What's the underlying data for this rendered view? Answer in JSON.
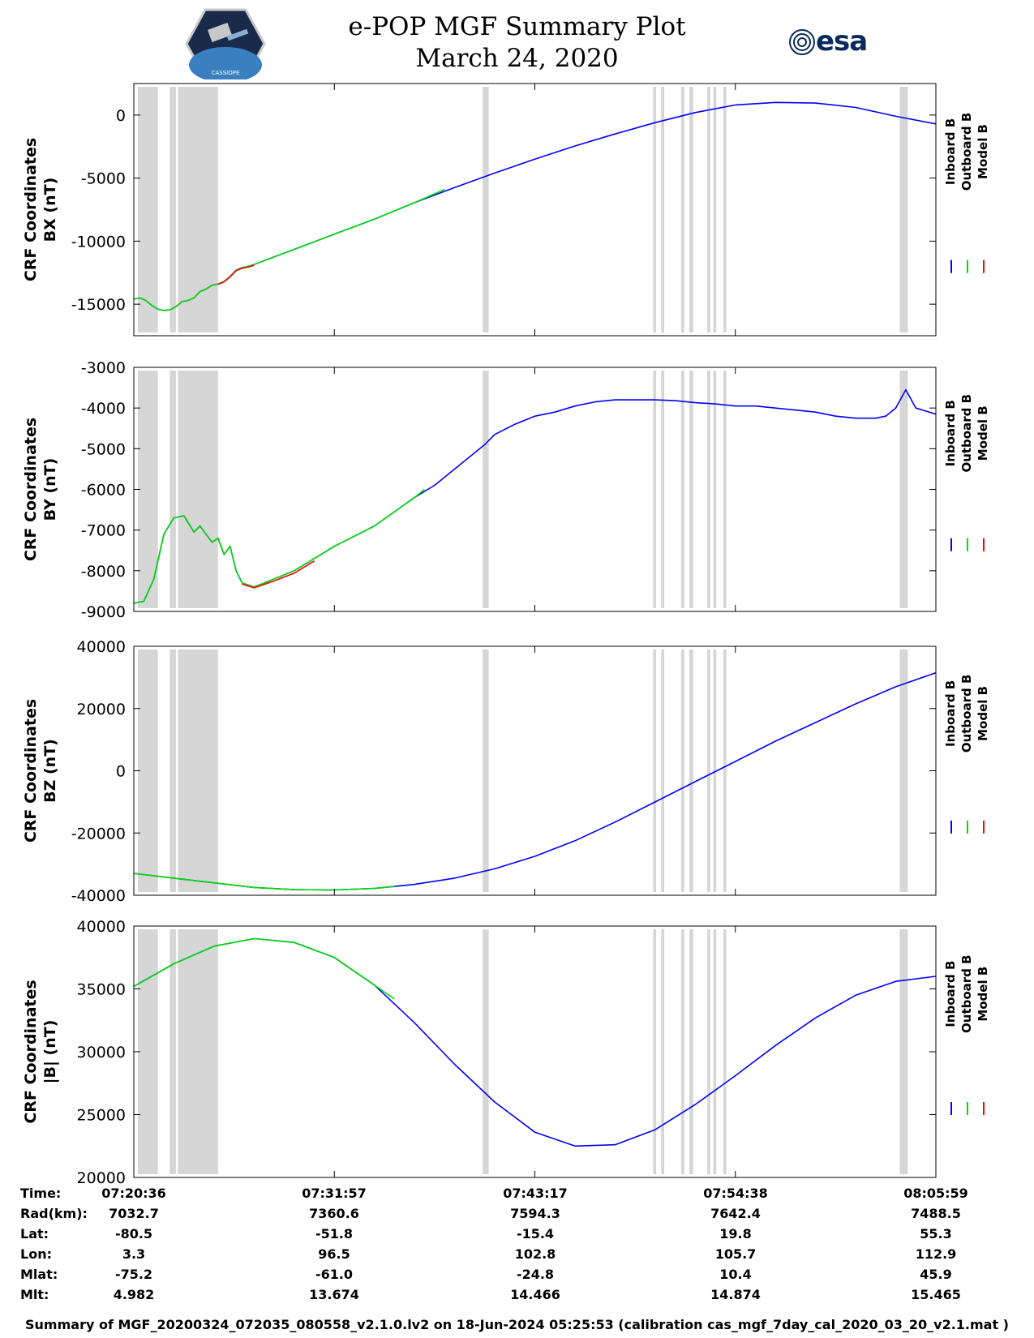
{
  "header": {
    "title_line1": "e-POP MGF Summary Plot",
    "title_line2": "March 24, 2020",
    "logo_left": "CASSIOPE",
    "logo_right": "esa"
  },
  "legend": {
    "items": [
      "Inboard B",
      "Outboard B",
      "Model B"
    ],
    "colors": [
      "#0000ff",
      "#00dd00",
      "#ff0000"
    ]
  },
  "chart_data": [
    {
      "type": "line",
      "ylabel_line1": "CRF Coordinates",
      "ylabel_line2": "BX (nT)",
      "ylim": [
        -17500,
        2500
      ],
      "yticks": [
        0,
        -5000,
        -10000,
        -15000
      ],
      "ytick_labels": [
        "0",
        "-5000",
        "-10000",
        "-15000"
      ],
      "series": [
        {
          "name": "Inboard B",
          "color": "#0000ff",
          "x": [
            0,
            0.3,
            0.6,
            0.9,
            1.2,
            1.5,
            1.8,
            2.1,
            2.4,
            2.7,
            3.0,
            3.3,
            3.6,
            3.9,
            4.2,
            4.5,
            4.8,
            5.1,
            5.4,
            5.7,
            6.0,
            7,
            8,
            9,
            10,
            12,
            14,
            16,
            18,
            20,
            22,
            24,
            26,
            28,
            30,
            32,
            34,
            36,
            38,
            40
          ],
          "y": [
            -14600,
            -14500,
            -14700,
            -15100,
            -15400,
            -15500,
            -15450,
            -15200,
            -14800,
            -14700,
            -14500,
            -14000,
            -13800,
            -13500,
            -13400,
            -13200,
            -12800,
            -12300,
            -12100,
            -12000,
            -11850,
            -11250,
            -10650,
            -10050,
            -9450,
            -8250,
            -6950,
            -5750,
            -4600,
            -3500,
            -2450,
            -1500,
            -600,
            200,
            800,
            1000,
            950,
            600,
            -100,
            -700
          ]
        },
        {
          "name": "Outboard B",
          "color": "#00dd00",
          "x": [
            0,
            0.3,
            0.6,
            0.9,
            1.2,
            1.5,
            1.8,
            2.1,
            2.4,
            2.7,
            3.0,
            3.3,
            3.6,
            3.9,
            4.2,
            4.5,
            4.8,
            5.1,
            5.4,
            5.7,
            6.0,
            7,
            8,
            9,
            10,
            12,
            14,
            15.5
          ],
          "y": [
            -14600,
            -14500,
            -14700,
            -15100,
            -15400,
            -15500,
            -15450,
            -15200,
            -14800,
            -14700,
            -14500,
            -14000,
            -13800,
            -13500,
            -13400,
            -13200,
            -12800,
            -12300,
            -12100,
            -12000,
            -11850,
            -11250,
            -10650,
            -10050,
            -9450,
            -8250,
            -6950,
            -5900
          ]
        },
        {
          "name": "Model B",
          "color": "#ff0000",
          "x": [
            4.2,
            4.5,
            4.8,
            5.1,
            5.4,
            5.7,
            6.0
          ],
          "y": [
            -13420,
            -13230,
            -12840,
            -12350,
            -12150,
            -12060,
            -11920
          ]
        }
      ]
    },
    {
      "type": "line",
      "ylabel_line1": "CRF Coordinates",
      "ylabel_line2": "BY (nT)",
      "ylim": [
        -9000,
        -3000
      ],
      "yticks": [
        -3000,
        -4000,
        -5000,
        -6000,
        -7000,
        -8000,
        -9000
      ],
      "ytick_labels": [
        "-3000",
        "-4000",
        "-5000",
        "-6000",
        "-7000",
        "-8000",
        "-9000"
      ],
      "series": [
        {
          "name": "Inboard B",
          "color": "#0000ff",
          "x": [
            0,
            0.5,
            1.0,
            1.5,
            2.0,
            2.5,
            3.0,
            3.3,
            3.6,
            3.9,
            4.2,
            4.5,
            4.8,
            5.1,
            5.4,
            6,
            7,
            8,
            9,
            10,
            11,
            12,
            13,
            14,
            15,
            16,
            17,
            17.5,
            18,
            19,
            20,
            21,
            22,
            23,
            24,
            25,
            26,
            27,
            28,
            29,
            30,
            31,
            32,
            33,
            34,
            35,
            36,
            37,
            37.5,
            38,
            38.5,
            39,
            40
          ],
          "y": [
            -8800,
            -8750,
            -8200,
            -7100,
            -6700,
            -6650,
            -7050,
            -6900,
            -7100,
            -7300,
            -7200,
            -7600,
            -7400,
            -8000,
            -8300,
            -8400,
            -8200,
            -8000,
            -7700,
            -7400,
            -7150,
            -6900,
            -6550,
            -6200,
            -5900,
            -5500,
            -5100,
            -4900,
            -4650,
            -4400,
            -4200,
            -4100,
            -3950,
            -3850,
            -3800,
            -3800,
            -3800,
            -3820,
            -3870,
            -3900,
            -3950,
            -3950,
            -4000,
            -4050,
            -4100,
            -4200,
            -4250,
            -4250,
            -4200,
            -4000,
            -3550,
            -4000,
            -4150
          ]
        },
        {
          "name": "Outboard B",
          "color": "#00dd00",
          "x": [
            0,
            0.5,
            1.0,
            1.5,
            2.0,
            2.5,
            3.0,
            3.3,
            3.6,
            3.9,
            4.2,
            4.5,
            4.8,
            5.1,
            5.4,
            6,
            7,
            8,
            9,
            10,
            11,
            12,
            13,
            14,
            14.5
          ],
          "y": [
            -8800,
            -8750,
            -8200,
            -7100,
            -6700,
            -6650,
            -7050,
            -6900,
            -7100,
            -7300,
            -7200,
            -7600,
            -7400,
            -8000,
            -8300,
            -8400,
            -8200,
            -8000,
            -7700,
            -7400,
            -7150,
            -6900,
            -6550,
            -6200,
            -6000
          ]
        },
        {
          "name": "Model B",
          "color": "#ff0000",
          "x": [
            5.4,
            6,
            7,
            8,
            9
          ],
          "y": [
            -8330,
            -8420,
            -8250,
            -8060,
            -7760
          ]
        }
      ]
    },
    {
      "type": "line",
      "ylabel_line1": "CRF Coordinates",
      "ylabel_line2": "BZ (nT)",
      "ylim": [
        -40000,
        40000
      ],
      "yticks": [
        40000,
        20000,
        0,
        -20000,
        -40000
      ],
      "ytick_labels": [
        "40000",
        "20000",
        "0",
        "-20000",
        "-40000"
      ],
      "series": [
        {
          "name": "Inboard B",
          "color": "#0000ff",
          "x": [
            0,
            2,
            4,
            6,
            8,
            10,
            12,
            14,
            16,
            18,
            20,
            22,
            24,
            26,
            28,
            30,
            32,
            34,
            36,
            38,
            40
          ],
          "y": [
            -33000,
            -34500,
            -36000,
            -37500,
            -38200,
            -38300,
            -37800,
            -36500,
            -34500,
            -31500,
            -27500,
            -22500,
            -16500,
            -10000,
            -3500,
            3000,
            9500,
            15500,
            21500,
            27000,
            31500
          ]
        },
        {
          "name": "Outboard B",
          "color": "#00dd00",
          "x": [
            0,
            2,
            4,
            6,
            8,
            10,
            12,
            13
          ],
          "y": [
            -33000,
            -34500,
            -36000,
            -37500,
            -38200,
            -38300,
            -37800,
            -37200
          ]
        },
        {
          "name": "Model B",
          "color": "#ff0000",
          "x": [],
          "y": []
        }
      ]
    },
    {
      "type": "line",
      "ylabel_line1": "CRF Coordinates",
      "ylabel_line2": "|B| (nT)",
      "ylim": [
        20000,
        40000
      ],
      "yticks": [
        40000,
        35000,
        30000,
        25000,
        20000
      ],
      "ytick_labels": [
        "40000",
        "35000",
        "30000",
        "25000",
        "20000"
      ],
      "series": [
        {
          "name": "Inboard B",
          "color": "#0000ff",
          "x": [
            0,
            2,
            4,
            6,
            8,
            10,
            12,
            14,
            16,
            18,
            20,
            22,
            24,
            26,
            28,
            30,
            32,
            34,
            36,
            38,
            40
          ],
          "y": [
            35200,
            37000,
            38400,
            39000,
            38700,
            37500,
            35300,
            32300,
            29000,
            26000,
            23600,
            22500,
            22600,
            23800,
            25800,
            28100,
            30500,
            32700,
            34500,
            35600,
            36000
          ]
        },
        {
          "name": "Outboard B",
          "color": "#00dd00",
          "x": [
            0,
            2,
            4,
            6,
            8,
            10,
            12,
            13
          ],
          "y": [
            35200,
            37000,
            38400,
            39000,
            38700,
            37500,
            35300,
            34200
          ]
        },
        {
          "name": "Model B",
          "color": "#ff0000",
          "x": [],
          "y": []
        }
      ]
    }
  ],
  "gray_intervals_min": [
    [
      0.2,
      1.2
    ],
    [
      1.8,
      2.1
    ],
    [
      2.2,
      4.2
    ],
    [
      17.4,
      17.7
    ],
    [
      25.9,
      26.05
    ],
    [
      26.3,
      26.45
    ],
    [
      27.3,
      27.45
    ],
    [
      27.7,
      27.9
    ],
    [
      28.6,
      28.75
    ],
    [
      28.9,
      29.05
    ],
    [
      29.4,
      29.55
    ],
    [
      38.2,
      38.6
    ]
  ],
  "x_ticks_min": [
    0,
    10,
    20,
    30,
    40
  ],
  "ephemeris": {
    "row_labels": [
      "Time:",
      "Rad(km):",
      "Lat:",
      "Lon:",
      "Mlat:",
      "Mlt:"
    ],
    "columns": [
      [
        "07:20:36",
        "7032.7",
        "-80.5",
        "3.3",
        "-75.2",
        "4.982"
      ],
      [
        "07:31:57",
        "7360.6",
        "-51.8",
        "96.5",
        "-61.0",
        "13.674"
      ],
      [
        "07:43:17",
        "7594.3",
        "-15.4",
        "102.8",
        "-24.8",
        "14.466"
      ],
      [
        "07:54:38",
        "7642.4",
        "19.8",
        "105.7",
        "10.4",
        "14.874"
      ],
      [
        "08:05:59",
        "7488.5",
        "55.3",
        "112.9",
        "45.9",
        "15.465"
      ]
    ]
  },
  "footer": "Summary of MGF_20200324_072035_080558_v2.1.0.lv2 on 18-Jun-2024 05:25:53 (calibration cas_mgf_7day_cal_2020_03_20_v2.1.mat )"
}
